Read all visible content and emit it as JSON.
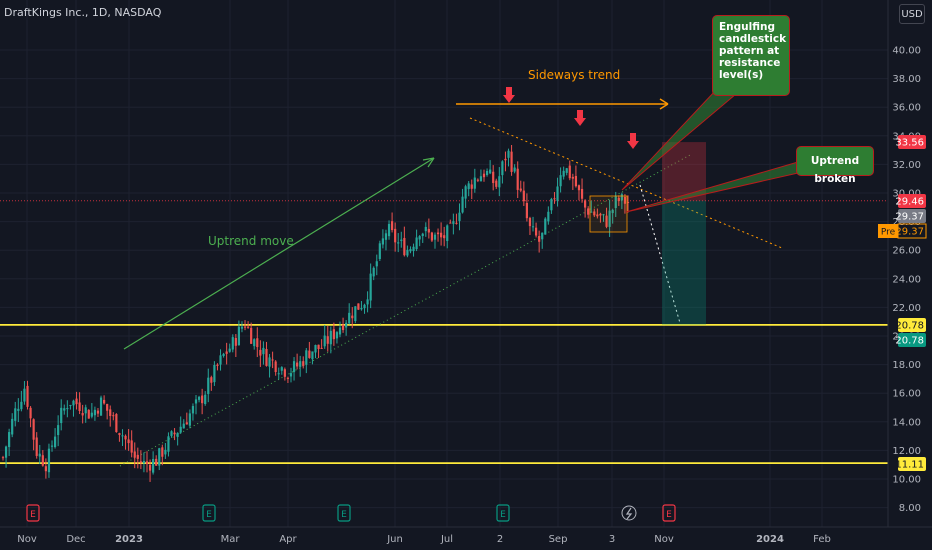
{
  "header": {
    "title": "DraftKings Inc., 1D, NASDAQ",
    "currency_button": "USD"
  },
  "colors": {
    "background": "#131722",
    "up_candle": "#26a69a",
    "down_candle": "#ef5350",
    "support_line": "#ffeb3b",
    "annotation_green": "#2e7d32",
    "annotation_orange": "#ff9800",
    "arrow_red": "#f23645"
  },
  "chart_data": {
    "type": "candlestick",
    "symbol": "DraftKings Inc.",
    "interval": "1D",
    "exchange": "NASDAQ",
    "x_tick_labels": [
      "Nov",
      "Dec",
      "2023",
      "Mar",
      "Apr",
      "Jun",
      "Jul",
      "2",
      "Sep",
      "3",
      "Nov",
      "2024",
      "Feb"
    ],
    "y_tick_labels": [
      "8.00",
      "10.00",
      "12.00",
      "14.00",
      "16.00",
      "18.00",
      "20.00",
      "22.00",
      "24.00",
      "26.00",
      "28.00",
      "30.00",
      "32.00",
      "34.00",
      "36.00",
      "38.00",
      "40.00"
    ],
    "ylim": [
      7,
      42
    ],
    "close_trend": [
      [
        11.5,
        14.5,
        16.5,
        12.0,
        11.0,
        14.0,
        15.5,
        15.2,
        14.5,
        15.4,
        14.2,
        13.0,
        11.5,
        11.0,
        11.3
      ],
      [
        12.5,
        13.5,
        14.5,
        15.5,
        17.0,
        18.5,
        19.5,
        21.0,
        19.5,
        18.5,
        18.0,
        17.5,
        18.0,
        19.0,
        19.2
      ],
      [
        20.0,
        21.0,
        21.8,
        22.5,
        25.0,
        27.5,
        26.5,
        26.0,
        27.5,
        27.0,
        26.8,
        27.5,
        30.0,
        31.0,
        31.5
      ],
      [
        30.5,
        33.0,
        30.5,
        27.5,
        26.5,
        29.0,
        32.0,
        31.0,
        29.0,
        28.5,
        28.0,
        29.5,
        29.4
      ]
    ],
    "events": [
      {
        "label": "E",
        "type": "earnings",
        "position": "Nov"
      },
      {
        "label": "E",
        "type": "earnings",
        "position": "Feb"
      },
      {
        "label": "E",
        "type": "earnings",
        "position": "May"
      },
      {
        "label": "E",
        "type": "earnings",
        "position": "Aug"
      },
      {
        "label": "E",
        "type": "earnings",
        "position": "Nov"
      }
    ],
    "horizontal_levels": [
      {
        "value": 20.78,
        "label": "20.78",
        "color": "#ffeb3b"
      },
      {
        "value": 11.11,
        "label": "11.11",
        "color": "#ffeb3b"
      },
      {
        "value": 29.46,
        "label": "29.46",
        "color": "#f23645",
        "style": "dotted"
      }
    ],
    "price_labels": [
      {
        "value": "33.56",
        "color": "#f23645"
      },
      {
        "value": "29.46",
        "color": "#f23645"
      },
      {
        "value": "29.37",
        "color": "#787b86"
      },
      {
        "value": "29.37",
        "color": "#ff9800",
        "prefix": "Pre"
      },
      {
        "value": "20.78",
        "color": "#ffeb3b"
      },
      {
        "value": "20.78",
        "color": "#089981"
      },
      {
        "value": "11.11",
        "color": "#ffeb3b"
      }
    ],
    "annotations": {
      "uptrend_move": "Uptrend move",
      "sideways_trend": "Sideways trend",
      "engulfing": "Engulfing candlestick pattern at resistance level(s)",
      "uptrend_broken": "Uptrend broken"
    },
    "position": {
      "entry": 29.46,
      "stop": 33.56,
      "target": 20.78
    }
  }
}
